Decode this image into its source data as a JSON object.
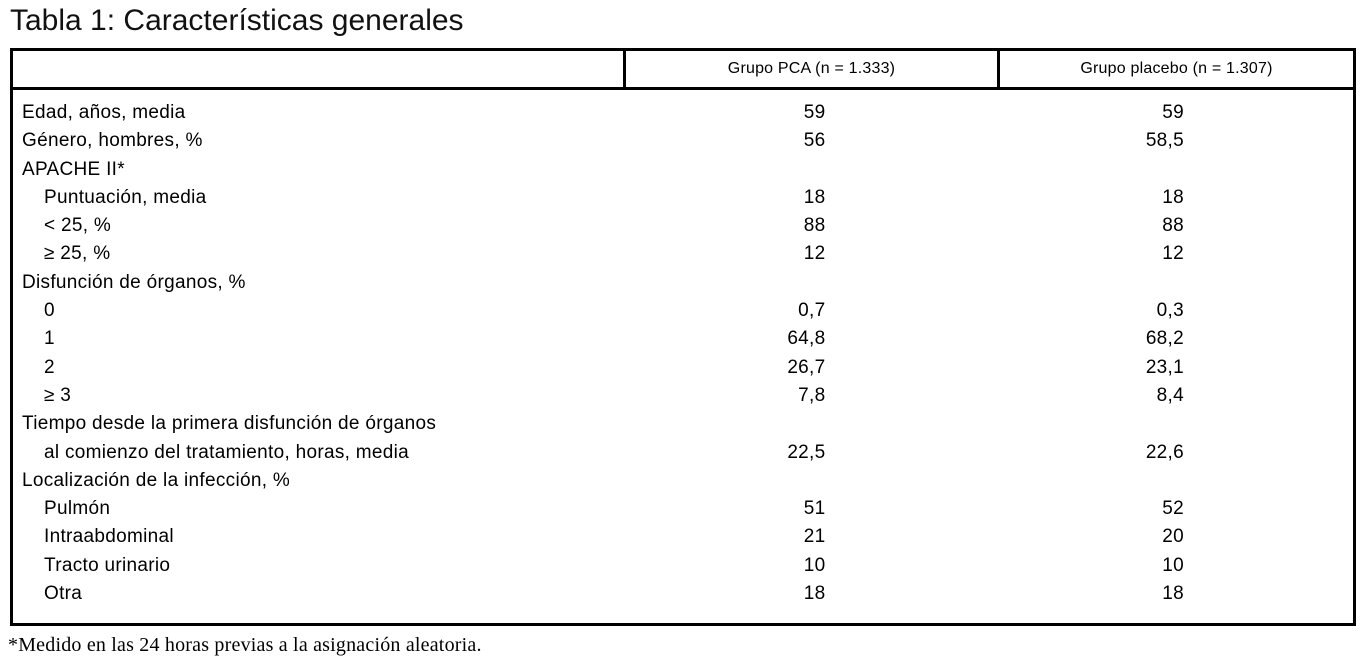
{
  "title": "Tabla 1: Características generales",
  "table": {
    "columns": [
      "Grupo PCA (n = 1.333)",
      "Grupo placebo (n = 1.307)"
    ],
    "rows": [
      {
        "label": "Edad, años, media",
        "indent": 0,
        "pca": "59",
        "placebo": "59"
      },
      {
        "label": "Género, hombres, %",
        "indent": 0,
        "pca": "56",
        "placebo": "58,5"
      },
      {
        "label": "APACHE II*",
        "indent": 0,
        "pca": "",
        "placebo": ""
      },
      {
        "label": "Puntuación, media",
        "indent": 1,
        "pca": "18",
        "placebo": "18"
      },
      {
        "label": "< 25, %",
        "indent": 1,
        "pca": "88",
        "placebo": "88"
      },
      {
        "label": "≥ 25, %",
        "indent": 1,
        "pca": "12",
        "placebo": "12"
      },
      {
        "label": "Disfunción de órganos, %",
        "indent": 0,
        "pca": "",
        "placebo": ""
      },
      {
        "label": "0",
        "indent": 1,
        "pca": "0,7",
        "placebo": "0,3"
      },
      {
        "label": "1",
        "indent": 1,
        "pca": "64,8",
        "placebo": "68,2"
      },
      {
        "label": "2",
        "indent": 1,
        "pca": "26,7",
        "placebo": "23,1"
      },
      {
        "label": "≥ 3",
        "indent": 1,
        "pca": "7,8",
        "placebo": "8,4"
      },
      {
        "label": "Tiempo desde la primera disfunción de órganos",
        "indent": 0,
        "pca": "",
        "placebo": ""
      },
      {
        "label": "al comienzo del tratamiento, horas, media",
        "indent": 1,
        "pca": "22,5",
        "placebo": "22,6"
      },
      {
        "label": "Localización de la infección, %",
        "indent": 0,
        "pca": "",
        "placebo": ""
      },
      {
        "label": "Pulmón",
        "indent": 1,
        "pca": "51",
        "placebo": "52"
      },
      {
        "label": "Intraabdominal",
        "indent": 1,
        "pca": "21",
        "placebo": "20"
      },
      {
        "label": "Tracto urinario",
        "indent": 1,
        "pca": "10",
        "placebo": "10"
      },
      {
        "label": "Otra",
        "indent": 1,
        "pca": "18",
        "placebo": "18"
      }
    ]
  },
  "footnote": "*Medido en las 24 horas previas a la asignación aleatoria."
}
